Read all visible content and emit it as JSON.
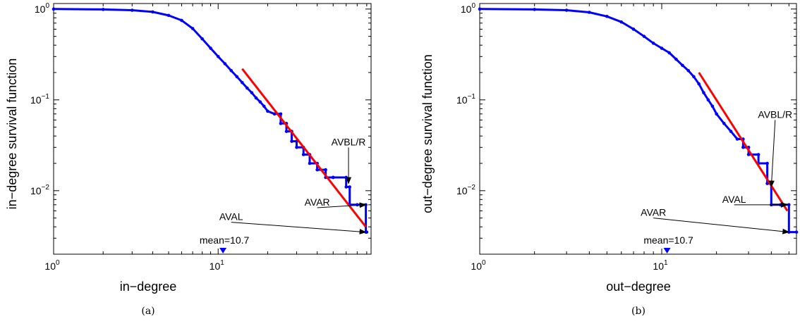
{
  "chart_data": [
    {
      "type": "line",
      "caption": "(a)",
      "xlabel": "in−degree",
      "ylabel": "in−degree survival function",
      "xscale": "log",
      "yscale": "log",
      "xlim": [
        1,
        85
      ],
      "ylim": [
        0.002,
        1.15
      ],
      "xticks": [
        {
          "base": "10",
          "exp": "0",
          "value": 1
        },
        {
          "base": "10",
          "exp": "1",
          "value": 10
        }
      ],
      "yticks": [
        {
          "base": "10",
          "exp": "0",
          "value": 1
        },
        {
          "base": "10",
          "exp": "−1",
          "value": 0.1
        },
        {
          "base": "10",
          "exp": "−2",
          "value": 0.01
        }
      ],
      "colors": {
        "empirical": "#0000ff",
        "fit": "#ff0000"
      },
      "series": [
        {
          "role": "empirical",
          "x": [
            1,
            2,
            3,
            4,
            5,
            6,
            7,
            8,
            9,
            10,
            11,
            12,
            13,
            14,
            15,
            16,
            17,
            18,
            19,
            20,
            22,
            24,
            24,
            26,
            26,
            28,
            28,
            30,
            30,
            33,
            33,
            36,
            36,
            40,
            40,
            45,
            45,
            50,
            50,
            60,
            60,
            63,
            63,
            70,
            70,
            79,
            79,
            80
          ],
          "y": [
            1,
            0.99,
            0.97,
            0.93,
            0.85,
            0.75,
            0.61,
            0.47,
            0.37,
            0.3,
            0.25,
            0.21,
            0.18,
            0.155,
            0.135,
            0.12,
            0.105,
            0.095,
            0.085,
            0.075,
            0.07,
            0.07,
            0.055,
            0.055,
            0.045,
            0.045,
            0.035,
            0.035,
            0.03,
            0.03,
            0.025,
            0.025,
            0.02,
            0.02,
            0.017,
            0.017,
            0.014,
            0.014,
            0.014,
            0.014,
            0.011,
            0.011,
            0.007,
            0.007,
            0.007,
            0.007,
            0.0035,
            0.0035
          ]
        },
        {
          "role": "fit",
          "x": [
            14,
            79
          ],
          "y": [
            0.22,
            0.004
          ]
        }
      ],
      "mean_marker": {
        "label": "mean=10.7",
        "x": 10.7
      },
      "annotations": [
        {
          "text": "AVBL/R",
          "text_x": 62,
          "text_y": 0.03,
          "point_x": 62,
          "point_y": 0.012
        },
        {
          "text": "AVAR",
          "text_x": 40,
          "text_y": 0.0065,
          "point_x": 79,
          "point_y": 0.007
        },
        {
          "text": "AVAL",
          "text_x": 12,
          "text_y": 0.0045,
          "point_x": 79,
          "point_y": 0.0035
        }
      ]
    },
    {
      "type": "line",
      "caption": "(b)",
      "xlabel": "out−degree",
      "ylabel": "out−degree survival function",
      "xscale": "log",
      "yscale": "log",
      "xlim": [
        1,
        55
      ],
      "ylim": [
        0.002,
        1.15
      ],
      "xticks": [
        {
          "base": "10",
          "exp": "0",
          "value": 1
        },
        {
          "base": "10",
          "exp": "1",
          "value": 10
        }
      ],
      "yticks": [
        {
          "base": "10",
          "exp": "0",
          "value": 1
        },
        {
          "base": "10",
          "exp": "−1",
          "value": 0.1
        },
        {
          "base": "10",
          "exp": "−2",
          "value": 0.01
        }
      ],
      "colors": {
        "empirical": "#0000ff",
        "fit": "#ff0000"
      },
      "series": [
        {
          "role": "empirical",
          "x": [
            1,
            2,
            3,
            4,
            5,
            6,
            7,
            8,
            9,
            10,
            11,
            12,
            13,
            14,
            15,
            16,
            17,
            18,
            19,
            20,
            22,
            24,
            26,
            28,
            28,
            30,
            30,
            34,
            34,
            38,
            38,
            40,
            40,
            45,
            45,
            50,
            50,
            55
          ],
          "y": [
            1,
            0.99,
            0.97,
            0.92,
            0.83,
            0.72,
            0.6,
            0.5,
            0.42,
            0.37,
            0.33,
            0.28,
            0.24,
            0.21,
            0.18,
            0.15,
            0.12,
            0.1,
            0.085,
            0.07,
            0.055,
            0.045,
            0.037,
            0.037,
            0.03,
            0.03,
            0.025,
            0.025,
            0.02,
            0.02,
            0.012,
            0.012,
            0.007,
            0.007,
            0.007,
            0.007,
            0.0035,
            0.0035
          ]
        },
        {
          "role": "fit",
          "x": [
            16,
            49
          ],
          "y": [
            0.2,
            0.006
          ]
        }
      ],
      "mean_marker": {
        "label": "mean=10.7",
        "x": 10.7
      },
      "annotations": [
        {
          "text": "AVBL/R",
          "text_x": 42,
          "text_y": 0.06,
          "point_x": 40,
          "point_y": 0.011
        },
        {
          "text": "AVAL",
          "text_x": 25,
          "text_y": 0.007,
          "point_x": 49,
          "point_y": 0.007
        },
        {
          "text": "AVAR",
          "text_x": 9,
          "text_y": 0.005,
          "point_x": 50,
          "point_y": 0.0035
        }
      ]
    }
  ]
}
